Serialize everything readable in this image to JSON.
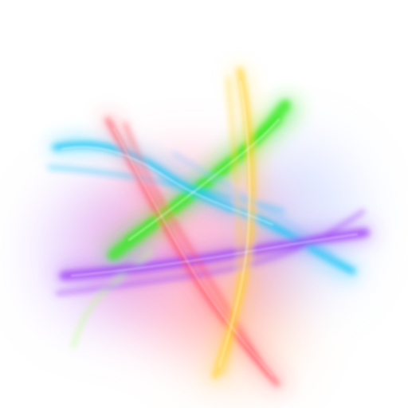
{
  "image": {
    "background_color": "#ffffff",
    "glow_colors": {
      "pink_haze": "#ff6fa8",
      "violet_haze": "#b77cff",
      "blue_haze": "#8fa8ff",
      "orange_haze": "#ff9a55"
    },
    "streak_colors": {
      "green": "#39ea1f",
      "cyan": "#21c8f5",
      "purple": "#a146f6",
      "red": "#ff4353",
      "yellow": "#ffd12a",
      "light_green": "#b8ff86",
      "light_blue": "#8cc7ff"
    }
  }
}
